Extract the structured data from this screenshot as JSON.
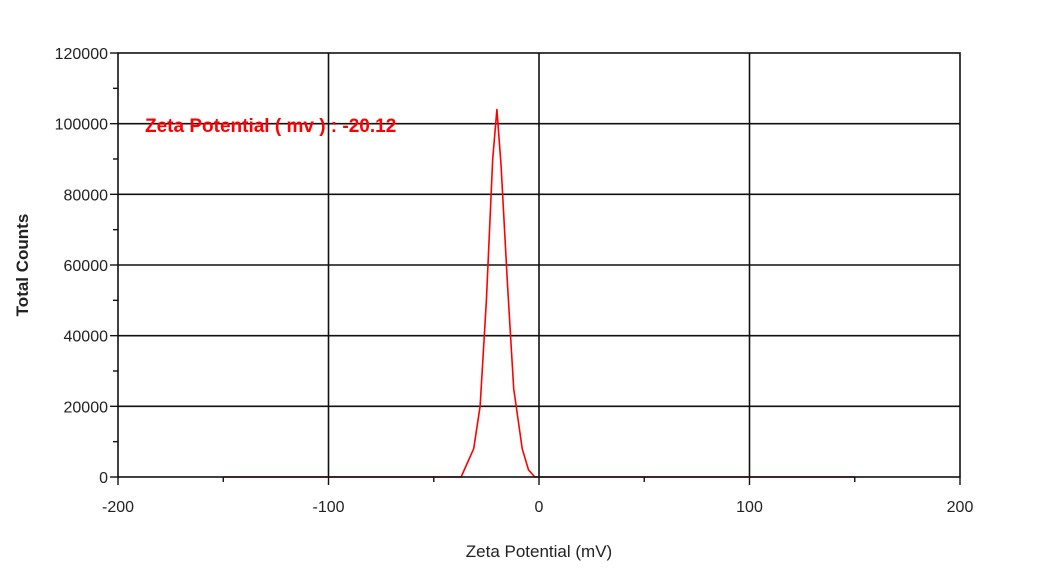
{
  "chart_data": {
    "type": "line",
    "title": "",
    "xlabel": "Zeta Potential (mV)",
    "ylabel": "Total Counts",
    "xlim": [
      -200,
      200
    ],
    "ylim": [
      0,
      120000
    ],
    "x_ticks": [
      -200,
      -100,
      0,
      100,
      200
    ],
    "y_ticks": [
      0,
      20000,
      40000,
      60000,
      80000,
      100000,
      120000
    ],
    "grid": true,
    "legend": "none",
    "annotation": {
      "text": "Zeta Potential ( mv ) : -20.12",
      "x": -200,
      "y": 100000,
      "color": "#ff0000"
    },
    "series": [
      {
        "color": "#ff0000",
        "x": [
          -150,
          -37,
          -31,
          -28,
          -25,
          -22,
          -20,
          -18,
          -15,
          -12,
          -8,
          -5,
          -2,
          150
        ],
        "y": [
          0,
          0,
          8000,
          20000,
          50000,
          90000,
          104000,
          88000,
          55000,
          25000,
          8000,
          2000,
          0,
          0
        ]
      }
    ]
  }
}
